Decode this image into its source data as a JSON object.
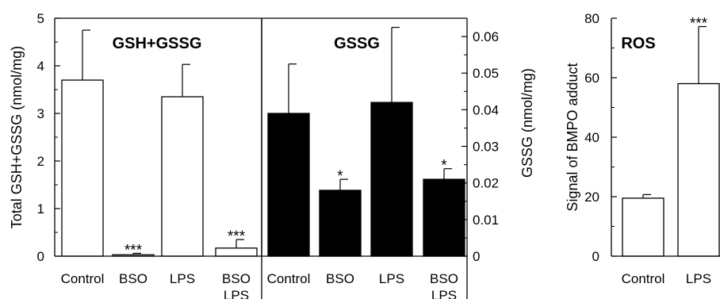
{
  "chart_data": [
    {
      "type": "bar",
      "title": "GSH+GSSG",
      "ylabel": "Total GSH+GSSG (nmol/mg)",
      "ylim": [
        0,
        5
      ],
      "yticks": [
        "0",
        "1",
        "2",
        "3",
        "4",
        "5"
      ],
      "bar_color": "#ffffff",
      "categories": [
        "Control",
        "BSO",
        "LPS",
        "BSO\nLPS"
      ],
      "values": [
        3.7,
        0.03,
        3.35,
        0.17
      ],
      "errors": [
        1.05,
        0.03,
        0.68,
        0.18
      ],
      "annotations": [
        "",
        "***",
        "",
        "***"
      ]
    },
    {
      "type": "bar",
      "title": "GSSG",
      "ylabel": "GSSG (nmol/mg)",
      "ylim": [
        0,
        0.065
      ],
      "yticks": [
        "0",
        "0.01",
        "0.02",
        "0.03",
        "0.04",
        "0.05",
        "0.06"
      ],
      "bar_color": "#000000",
      "categories": [
        "Control",
        "BSO",
        "LPS",
        "BSO\nLPS"
      ],
      "values": [
        0.039,
        0.018,
        0.042,
        0.021
      ],
      "errors": [
        0.0135,
        0.003,
        0.0205,
        0.0029
      ],
      "annotations": [
        "",
        "*",
        "",
        "*"
      ]
    },
    {
      "type": "bar",
      "title": "ROS",
      "ylabel": "Signal of BMPO adduct",
      "ylim": [
        0,
        80
      ],
      "yticks": [
        "0",
        "20",
        "40",
        "60",
        "80"
      ],
      "bar_color": "#ffffff",
      "categories": [
        "Control",
        "LPS"
      ],
      "values": [
        19.5,
        58
      ],
      "errors": [
        1.2,
        19.2
      ],
      "annotations": [
        "",
        "***"
      ]
    }
  ]
}
